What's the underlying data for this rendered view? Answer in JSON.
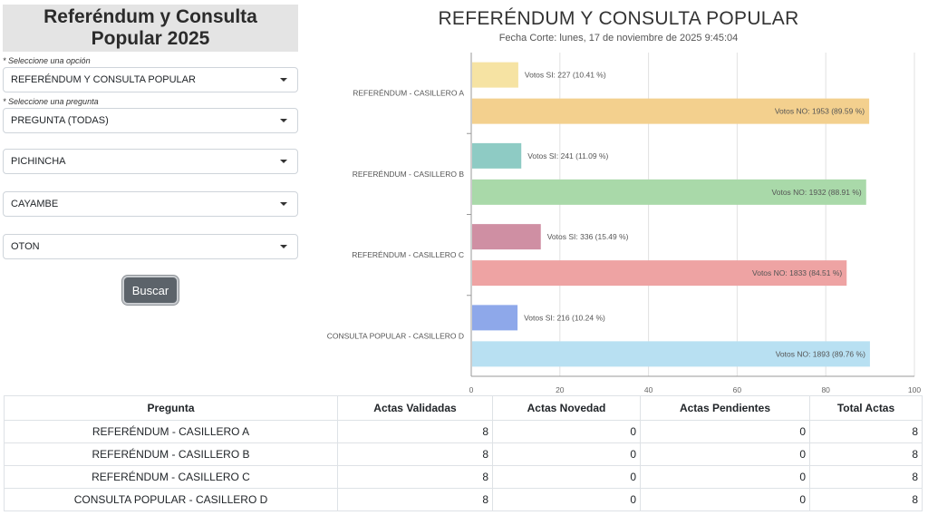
{
  "sidebar": {
    "title": "Referéndum y Consulta Popular 2025",
    "option_label": "* Seleccione una opción",
    "option_value": "REFERÉNDUM Y CONSULTA POPULAR",
    "question_label": "* Seleccione una pregunta",
    "question_value": "PREGUNTA (TODAS)",
    "province_value": "PICHINCHA",
    "canton_value": "CAYAMBE",
    "parish_value": "OTON",
    "search_button": "Buscar"
  },
  "chart_data": {
    "type": "bar",
    "orientation": "horizontal",
    "title": "REFERÉNDUM Y CONSULTA POPULAR",
    "subtitle": "Fecha Corte: lunes, 17 de noviembre de 2025 9:45:04",
    "categories": [
      "REFERÉNDUM - CASILLERO A",
      "REFERÉNDUM - CASILLERO B",
      "REFERÉNDUM - CASILLERO C",
      "CONSULTA POPULAR - CASILLERO D"
    ],
    "series": [
      {
        "values": [
          10.41,
          11.09,
          15.49,
          10.24
        ],
        "labels": [
          "Votos SI: 227 (10.41 %)",
          "Votos SI: 241 (11.09 %)",
          "Votos SI: 336 (15.49 %)",
          "Votos SI: 216 (10.24 %)"
        ],
        "colors": [
          "#f6e3a3",
          "#8ecbc4",
          "#cf8fa3",
          "#8ea8ea"
        ]
      },
      {
        "values": [
          89.59,
          88.91,
          84.51,
          89.76
        ],
        "labels": [
          "Votos NO: 1953 (89.59 %)",
          "Votos NO: 1932 (88.91 %)",
          "Votos NO: 1833 (84.51 %)",
          "Votos NO: 1893 (89.76 %)"
        ],
        "colors": [
          "#f3d08e",
          "#a9d9a9",
          "#eea3a3",
          "#b8e0f2"
        ]
      }
    ],
    "xlim": [
      0,
      100
    ],
    "xticks": [
      "0",
      "20",
      "40",
      "60",
      "80",
      "100"
    ],
    "grid": true
  },
  "table": {
    "headers": [
      "Pregunta",
      "Actas Validadas",
      "Actas Novedad",
      "Actas Pendientes",
      "Total Actas"
    ],
    "rows": [
      [
        "REFERÉNDUM - CASILLERO A",
        "8",
        "0",
        "0",
        "8"
      ],
      [
        "REFERÉNDUM - CASILLERO B",
        "8",
        "0",
        "0",
        "8"
      ],
      [
        "REFERÉNDUM - CASILLERO C",
        "8",
        "0",
        "0",
        "8"
      ],
      [
        "CONSULTA POPULAR - CASILLERO D",
        "8",
        "0",
        "0",
        "8"
      ]
    ]
  }
}
